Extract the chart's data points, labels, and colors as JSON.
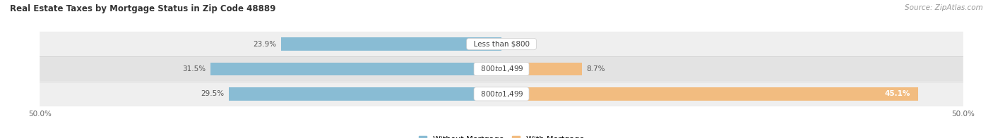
{
  "title": "Real Estate Taxes by Mortgage Status in Zip Code 48889",
  "source": "Source: ZipAtlas.com",
  "rows": [
    {
      "label": "Less than $800",
      "without_mortgage": 23.9,
      "with_mortgage": 0.0
    },
    {
      "label": "$800 to $1,499",
      "without_mortgage": 31.5,
      "with_mortgage": 8.7
    },
    {
      "label": "$800 to $1,499",
      "without_mortgage": 29.5,
      "with_mortgage": 45.1
    }
  ],
  "color_without": "#89bcd4",
  "color_with": "#f2bc80",
  "row_bg_colors": [
    "#efefef",
    "#e3e3e3",
    "#efefef"
  ],
  "axis_min": -50.0,
  "axis_max": 50.0,
  "title_fontsize": 8.5,
  "source_fontsize": 7.5,
  "value_fontsize": 7.5,
  "label_fontsize": 7.5,
  "legend_fontsize": 8,
  "tick_fontsize": 7.5
}
